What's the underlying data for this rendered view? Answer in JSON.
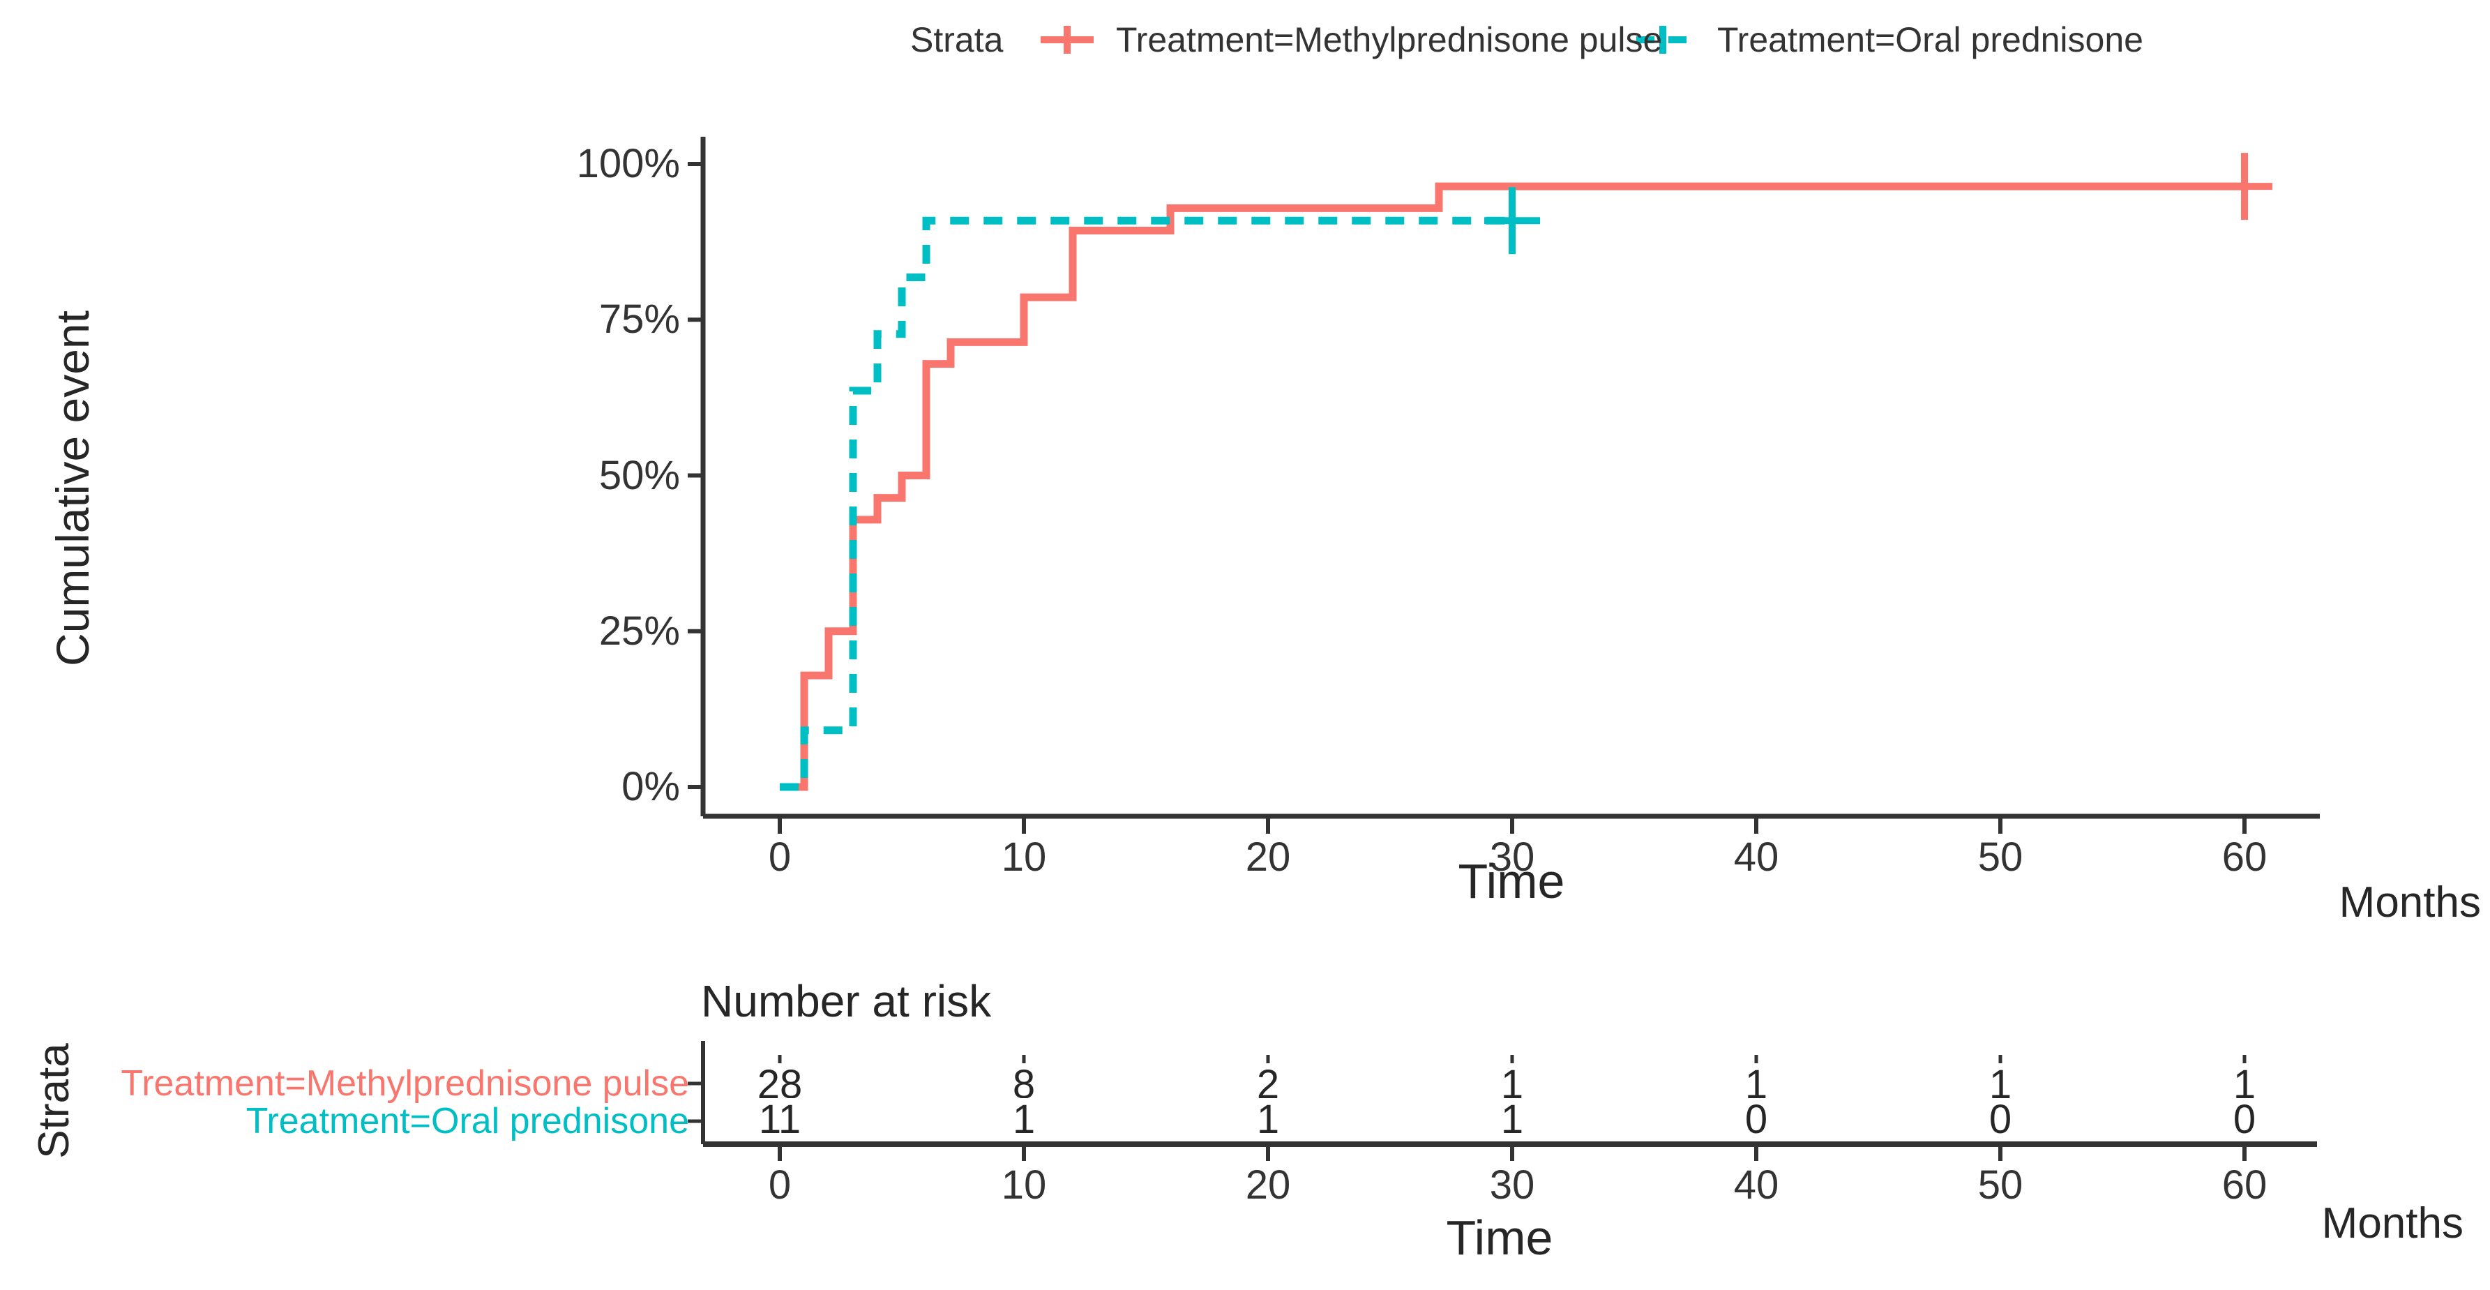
{
  "legend": {
    "title": "Strata",
    "items": [
      {
        "label": "Treatment=Methylprednisone pulse",
        "color": "#F8766D",
        "dashed": false
      },
      {
        "label": "Treatment=Oral prednisone",
        "color": "#00BFC4",
        "dashed": true
      }
    ]
  },
  "y_axis": {
    "title": "Cumulative event",
    "tick_labels": [
      "0%",
      "25%",
      "50%",
      "75%",
      "100%"
    ],
    "tick_values": [
      0,
      25,
      50,
      75,
      100
    ]
  },
  "x_axis": {
    "title": "Time",
    "unit": "Months",
    "tick_values": [
      0,
      10,
      20,
      30,
      40,
      50,
      60
    ]
  },
  "risk_table": {
    "title": "Number at risk",
    "side_label": "Strata",
    "x_title": "Time",
    "x_unit": "Months",
    "tick_values": [
      0,
      10,
      20,
      30,
      40,
      50,
      60
    ],
    "rows": [
      {
        "label": "Treatment=Methylprednisone pulse",
        "color": "#F8766D",
        "counts": [
          28,
          8,
          2,
          1,
          1,
          1,
          1
        ]
      },
      {
        "label": "Treatment=Oral prednisone",
        "color": "#00BFC4",
        "counts": [
          11,
          1,
          1,
          1,
          0,
          0,
          0
        ]
      }
    ]
  },
  "chart_data": {
    "type": "line",
    "subtype": "kaplan-meier-cumulative-incidence-step",
    "title": "",
    "xlabel": "Time",
    "x_unit": "Months",
    "ylabel": "Cumulative event",
    "xlim": [
      0,
      60
    ],
    "ylim": [
      0,
      100
    ],
    "grid": false,
    "legend_position": "top",
    "series": [
      {
        "name": "Treatment=Methylprednisone pulse",
        "color": "#F8766D",
        "style": "solid",
        "n": 28,
        "step_points": [
          [
            0,
            0
          ],
          [
            1,
            17.9
          ],
          [
            2,
            25
          ],
          [
            3,
            42.9
          ],
          [
            4,
            46.4
          ],
          [
            5,
            50
          ],
          [
            6,
            67.9
          ],
          [
            7,
            71.4
          ],
          [
            10,
            78.6
          ],
          [
            12,
            89.3
          ],
          [
            16,
            92.9
          ],
          [
            27,
            96.4
          ]
        ],
        "end_time": 60,
        "censor_marks": [
          [
            60,
            96.4
          ]
        ]
      },
      {
        "name": "Treatment=Oral prednisone",
        "color": "#00BFC4",
        "style": "dashed",
        "n": 11,
        "step_points": [
          [
            0,
            0
          ],
          [
            1,
            9.1
          ],
          [
            3,
            63.6
          ],
          [
            4,
            72.7
          ],
          [
            5,
            81.8
          ],
          [
            6,
            90.9
          ]
        ],
        "end_time": 30,
        "censor_marks": [
          [
            30,
            90.9
          ]
        ]
      }
    ]
  }
}
